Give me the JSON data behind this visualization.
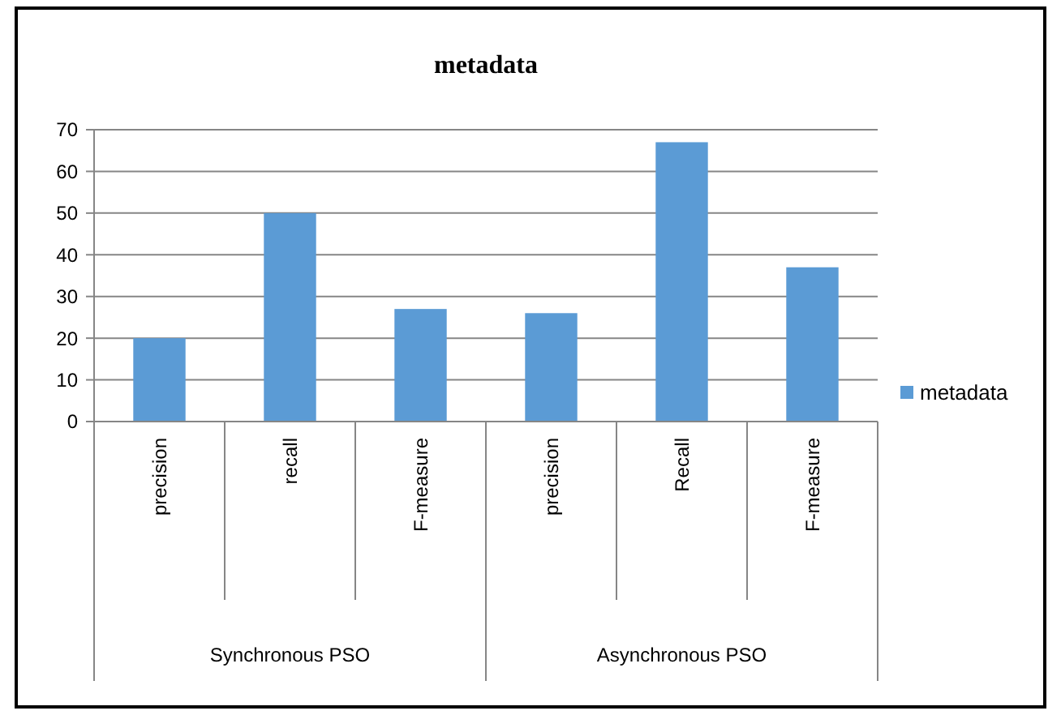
{
  "chart_data": {
    "type": "bar",
    "title": "metadata",
    "categories": [
      "precision",
      "recall",
      "F-measure",
      "precision",
      "Recall",
      "F-measure"
    ],
    "series": [
      {
        "name": "metadata",
        "color": "#5b9bd5",
        "values": [
          20,
          50,
          27,
          26,
          67,
          37
        ]
      }
    ],
    "annotations": [
      "Synchronous PSO",
      "Asynchronous PSO"
    ],
    "ylim": [
      0,
      70
    ],
    "yticks": [
      0,
      10,
      20,
      30,
      40,
      50,
      60,
      70
    ],
    "grid": "y",
    "legend": "right"
  }
}
